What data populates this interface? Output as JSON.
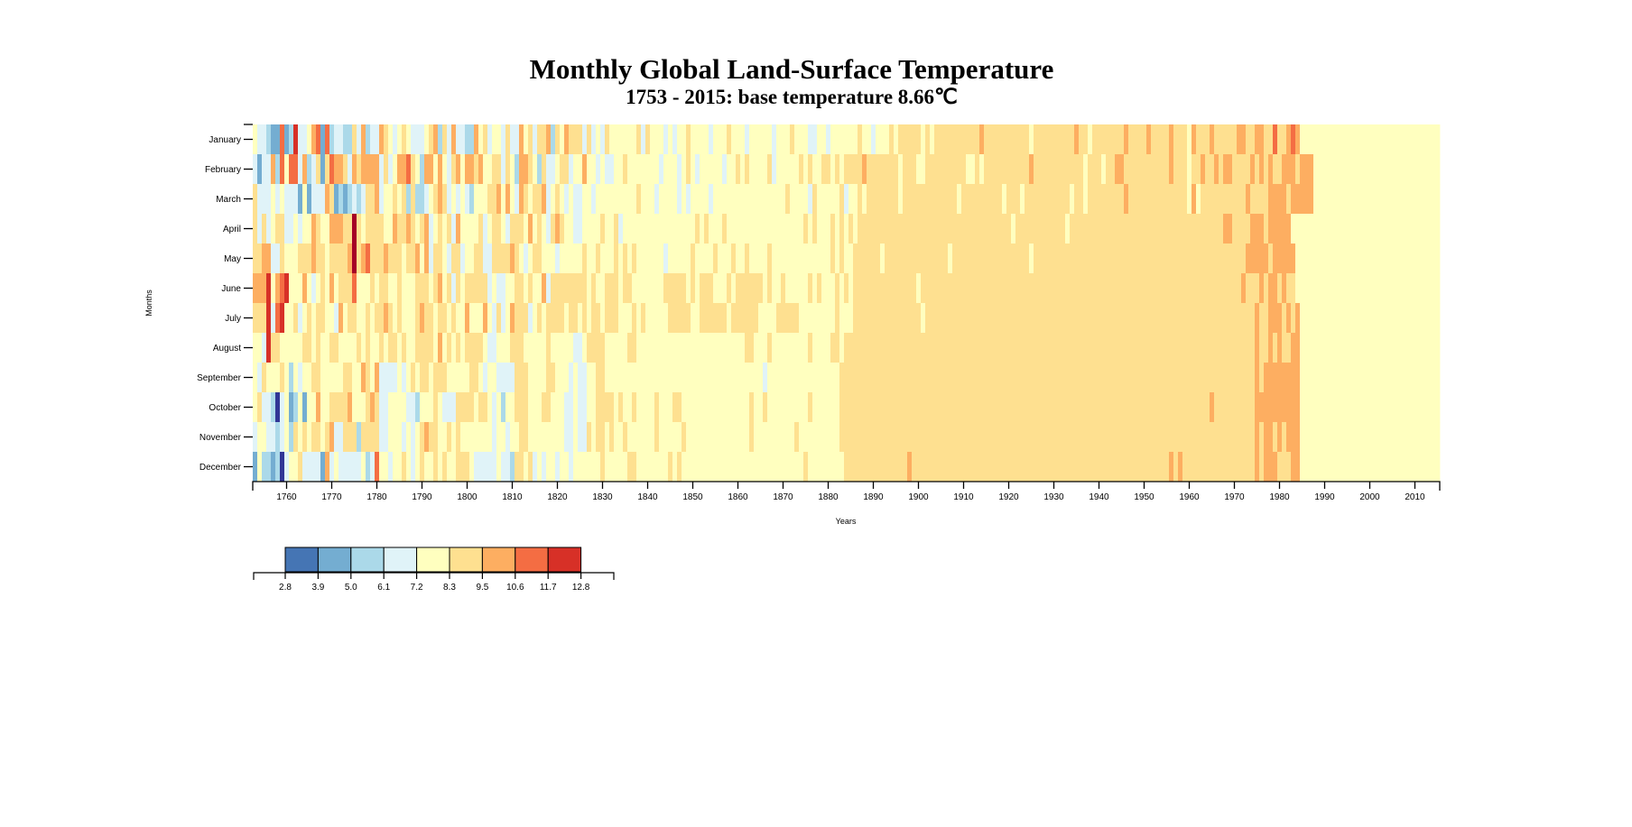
{
  "chart_data": {
    "type": "heatmap",
    "title": "Monthly Global Land-Surface Temperature",
    "subtitle": "1753 - 2015: base temperature 8.66℃",
    "xlabel": "Years",
    "ylabel": "Months",
    "base_temperature": 8.66,
    "year_range": [
      1753,
      2015
    ],
    "months": [
      "January",
      "February",
      "March",
      "April",
      "May",
      "June",
      "July",
      "August",
      "September",
      "October",
      "November",
      "December"
    ],
    "x_ticks": [
      "1760",
      "1770",
      "1780",
      "1790",
      "1800",
      "1810",
      "1820",
      "1830",
      "1840",
      "1850",
      "1860",
      "1870",
      "1880",
      "1890",
      "1900",
      "1910",
      "1920",
      "1930",
      "1940",
      "1950",
      "1960",
      "1970",
      "1980",
      "1990",
      "2000",
      "2010"
    ],
    "legend": {
      "thresholds": [
        "2.8",
        "3.9",
        "5.0",
        "6.1",
        "7.2",
        "8.3",
        "9.5",
        "10.6",
        "11.7",
        "12.8"
      ],
      "colors": [
        "#4575b4",
        "#74add1",
        "#abd9e9",
        "#e0f3f8",
        "#ffffbf",
        "#fee090",
        "#fdae61",
        "#f46d43",
        "#d73027"
      ]
    },
    "bin_colors": [
      "#313695",
      "#4575b4",
      "#74add1",
      "#abd9e9",
      "#e0f3f8",
      "#ffffbf",
      "#fee090",
      "#fdae61",
      "#f46d43",
      "#d73027",
      "#a50026"
    ],
    "value_encoding": "each character = temperature bin index (0-9, a=10) into bin_colors, one per year from 1753",
    "bins_by_month": [
      "5443228239445782834433647344765456544456736474433756455464475646673657666464546555555646555454556555545556555455555455565554455455555565545556566666565666666666676666666666566666666676656666666766667666676665766676666677667766866787",
      "4244738588473462687764767777464577865377575467577675566465377653644566455755454455655555554555456545555545565655556455555656556656566667666666656665566666666655656666666666766666666666566656677666666666676665667667677666676767667776777",
      "6444545444252444762323434667455656363345676454543555667575476566745654544554555555555655545555454555545555555555555555655554655555645565666666656666666666665666666666566656666666666566566666666766666666666665756666666666766667777677777",
      "6464566445455765577766a656666557667656745656475555645665466657565467655445555655645555555555555555656555655555555555555555656555656565666666666666666666666666666666666656666666666656666666666666666666666666666666666776666777677777",
      "6677446555666766566667a6786667666566757466546645566446666765456655545555565565556565655555545555565555655565565555655555555555556565566666656666666666666656666666666666666656666666666666666666666666666666666666666666666677777677777",
      "7779578955575456575666855565665565556665675646566666454455665655746666666656556665665555555666665656665556566666656556555556565556565666666666666665666666666666666666666666666666666666666666666666666666666666666666666667666767767665",
      "6669489556456566554756655656676565556766566565575557546457666456566665665656656665556565555566666556666665666666555566666555555556555666666666666666566666666666666666666666666666666666666666666666666666666666666666666666667667776767",
      "5549665555566565566555565655656656556666575656566665445556665555565555544566665555566555555555555555555555555665556555555556555566566666666666666666666666666666666666666666666666666666666666666666666666666666666666666666667667676677",
      "5465556535455665555566557657444454565665666555556654554444666555566555454455665555555555555555555555555555555555545555555555555555666666666666666666666666666666666666666666666666666666666666666666666666666666666666666666667677777777",
      "5644304523525575566667555676445555443555654446666566545355666555665554454455666656556555565556655555555555555565565555555556555555666666666666666666666666666666666666666666666666666666666666666666666666666666666676666666667777777777",
      "4554434536565665674466636666445554545676655656555555545545566555555554454465665655655555565555565555555555555565555555556555555555666666666666666666666666666666666666666666666666666666666666666666666666666666666666666666667677676777",
      "2533230455644442745444445348554556545655656556665444445443665645455455455555565555566555555565655555555555555555555555555565555555566666666666666766666666666666666666666666666666666666666666666666666666676766666666666666667677766677"
    ]
  }
}
